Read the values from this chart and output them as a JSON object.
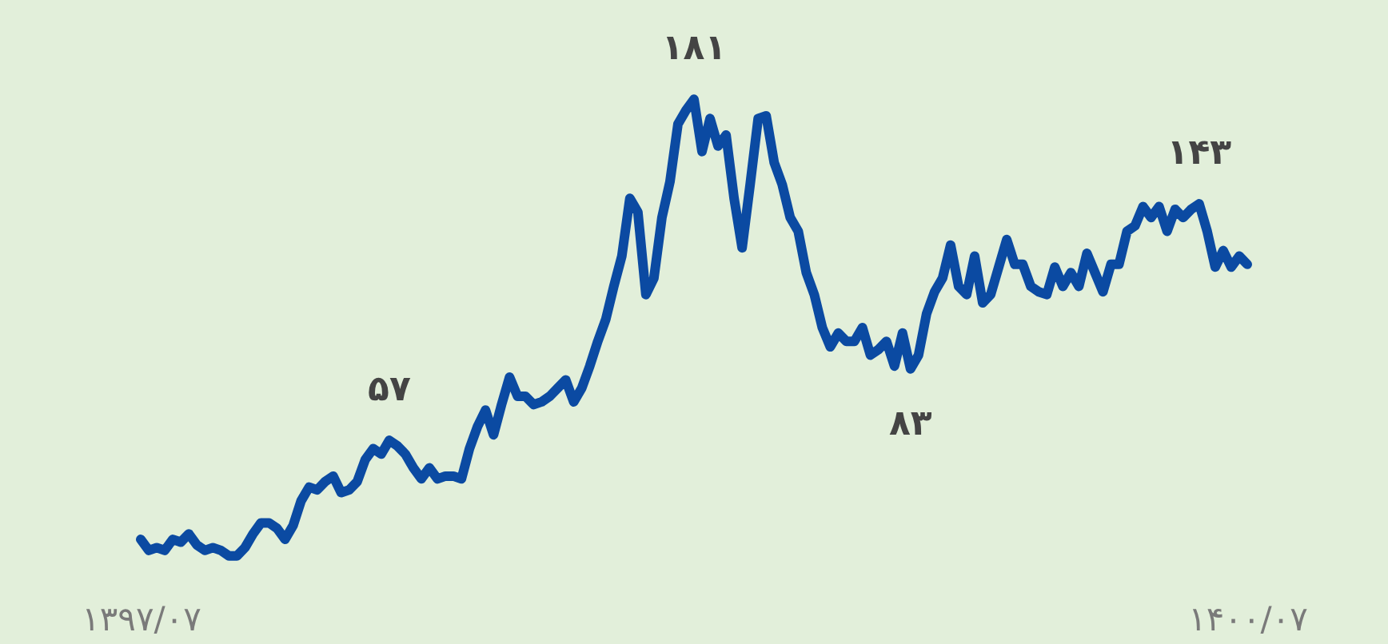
{
  "chart_data": {
    "type": "line",
    "categories": [
      "۱۳۹۷/۰۷",
      null,
      null,
      null,
      null,
      null,
      null,
      null,
      null,
      null,
      null,
      null,
      null,
      null,
      null,
      null,
      null,
      null,
      null,
      null,
      null,
      null,
      null,
      null,
      null,
      null,
      null,
      null,
      null,
      null,
      null,
      null,
      null,
      null,
      null,
      null,
      null,
      null,
      null,
      null,
      null,
      null,
      null,
      null,
      null,
      null,
      null,
      null,
      null,
      null,
      null,
      null,
      null,
      null,
      null,
      null,
      null,
      null,
      null,
      null,
      null,
      null,
      null,
      null,
      null,
      null,
      null,
      null,
      null,
      null,
      null,
      null,
      null,
      null,
      null,
      null,
      null,
      null,
      null,
      null,
      null,
      null,
      null,
      null,
      null,
      null,
      null,
      null,
      null,
      null,
      null,
      null,
      null,
      null,
      null,
      null,
      null,
      null,
      null,
      null,
      null,
      null,
      null,
      null,
      null,
      null,
      null,
      null,
      null,
      null,
      null,
      null,
      null,
      null,
      null,
      null,
      null,
      null,
      null,
      null,
      null,
      null,
      null,
      null,
      null,
      null,
      null,
      null,
      null,
      null,
      null,
      null,
      null,
      null,
      null,
      null,
      null,
      null,
      "۱۴۰۰/۰۷"
    ],
    "series": [
      {
        "color": "#0b4aa2",
        "values": [
          21,
          17,
          18,
          17,
          21,
          20,
          23,
          19,
          17,
          18,
          17,
          15,
          15,
          18,
          23,
          27,
          27,
          25,
          21,
          26,
          35,
          40,
          39,
          42,
          44,
          38,
          39,
          42,
          50,
          54,
          52,
          57,
          55,
          52,
          47,
          43,
          47,
          43,
          44,
          44,
          43,
          54,
          62,
          68,
          59,
          70,
          80,
          73,
          73,
          70,
          71,
          73,
          76,
          79,
          71,
          76,
          84,
          93,
          101,
          113,
          124,
          145,
          140,
          110,
          116,
          138,
          151,
          172,
          177,
          181,
          162,
          174,
          164,
          168,
          145,
          127,
          150,
          174,
          175,
          158,
          150,
          138,
          133,
          118,
          110,
          98,
          91,
          96,
          93,
          93,
          98,
          88,
          90,
          93,
          84,
          96,
          83,
          88,
          103,
          111,
          116,
          128,
          113,
          110,
          124,
          107,
          110,
          120,
          130,
          121,
          121,
          113,
          111,
          110,
          120,
          113,
          118,
          113,
          125,
          118,
          111,
          121,
          121,
          133,
          135,
          142,
          138,
          142,
          133,
          141,
          138,
          141,
          143,
          133,
          120,
          126,
          120,
          124,
          121
        ],
        "value_labels": [
          null,
          null,
          null,
          null,
          null,
          null,
          null,
          null,
          null,
          null,
          null,
          null,
          null,
          null,
          null,
          null,
          null,
          null,
          null,
          null,
          null,
          null,
          null,
          null,
          null,
          null,
          null,
          null,
          null,
          null,
          null,
          "۵۷",
          null,
          null,
          null,
          null,
          null,
          null,
          null,
          null,
          null,
          null,
          null,
          null,
          null,
          null,
          null,
          null,
          null,
          null,
          null,
          null,
          null,
          null,
          null,
          null,
          null,
          null,
          null,
          null,
          null,
          null,
          null,
          null,
          null,
          null,
          null,
          null,
          null,
          "۱۸۱",
          null,
          null,
          null,
          null,
          null,
          null,
          null,
          null,
          null,
          null,
          null,
          null,
          null,
          null,
          null,
          null,
          null,
          null,
          null,
          null,
          null,
          null,
          null,
          null,
          null,
          null,
          "۸۳",
          null,
          null,
          null,
          null,
          null,
          null,
          null,
          null,
          null,
          null,
          null,
          null,
          null,
          null,
          null,
          null,
          null,
          null,
          null,
          null,
          null,
          null,
          null,
          null,
          null,
          null,
          null,
          null,
          null,
          null,
          null,
          null,
          null,
          null,
          null,
          "۱۴۳",
          null,
          null,
          null,
          null,
          null,
          null
        ]
      }
    ],
    "grid": false,
    "tick_labels": "x"
  }
}
